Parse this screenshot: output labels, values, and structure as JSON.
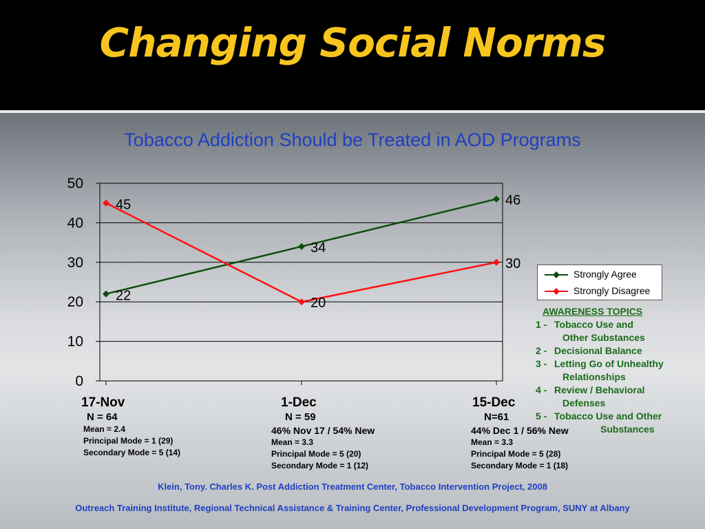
{
  "slide": {
    "title": "Changing Social Norms",
    "citation_line1": "Klein, Tony. Charles K. Post Addiction Treatment Center, Tobacco Intervention Project, 2008",
    "citation_line2": "Outreach Training Institute, Regional Technical Assistance & Training Center, Professional Development Program, SUNY at Albany"
  },
  "chart_data": {
    "type": "line",
    "title": "Tobacco Addiction Should be Treated in AOD Programs",
    "categories": [
      "17-Nov",
      "1-Dec",
      "15-Dec"
    ],
    "ylim": [
      0,
      50
    ],
    "yticks": [
      "0",
      "10",
      "20",
      "30",
      "40",
      "50"
    ],
    "grid": true,
    "legend_position": "right",
    "series": [
      {
        "name": "Strongly Agree",
        "values": [
          22,
          34,
          46
        ],
        "color": "#0e4d0e"
      },
      {
        "name": "Strongly Disagree",
        "values": [
          45,
          20,
          30
        ],
        "color": "#ff1010"
      }
    ]
  },
  "categories_info": [
    {
      "n": "N = 64",
      "lines": [
        "Mean = 2.4",
        "Principal Mode = 1 (29)",
        "Secondary Mode = 5 (14)"
      ]
    },
    {
      "n": "N = 59",
      "sub": "46% Nov 17 /  54% New",
      "lines": [
        "Mean = 3.3",
        "Principal Mode = 5 (20)",
        "Secondary Mode = 1 (12)"
      ]
    },
    {
      "n": "N=61",
      "sub": "44% Dec 1 / 56% New",
      "lines": [
        "Mean = 3.3",
        "Principal Mode = 5 (28)",
        "Secondary Mode = 1 (18)"
      ]
    }
  ],
  "awareness": {
    "heading": "AWARENESS TOPICS",
    "items": [
      {
        "num": "1 -",
        "text": "Tobacco Use and",
        "cont": "Other Substances"
      },
      {
        "num": "2 -",
        "text": "Decisional Balance"
      },
      {
        "num": "3 -",
        "text": "Letting Go of Unhealthy",
        "cont": "Relationships"
      },
      {
        "num": "4 -",
        "text": "Review / Behavioral",
        "cont": "Defenses"
      },
      {
        "num": "5 -",
        "text": "Tobacco Use and Other",
        "cont": "Substances",
        "cont_indent": true
      }
    ]
  }
}
